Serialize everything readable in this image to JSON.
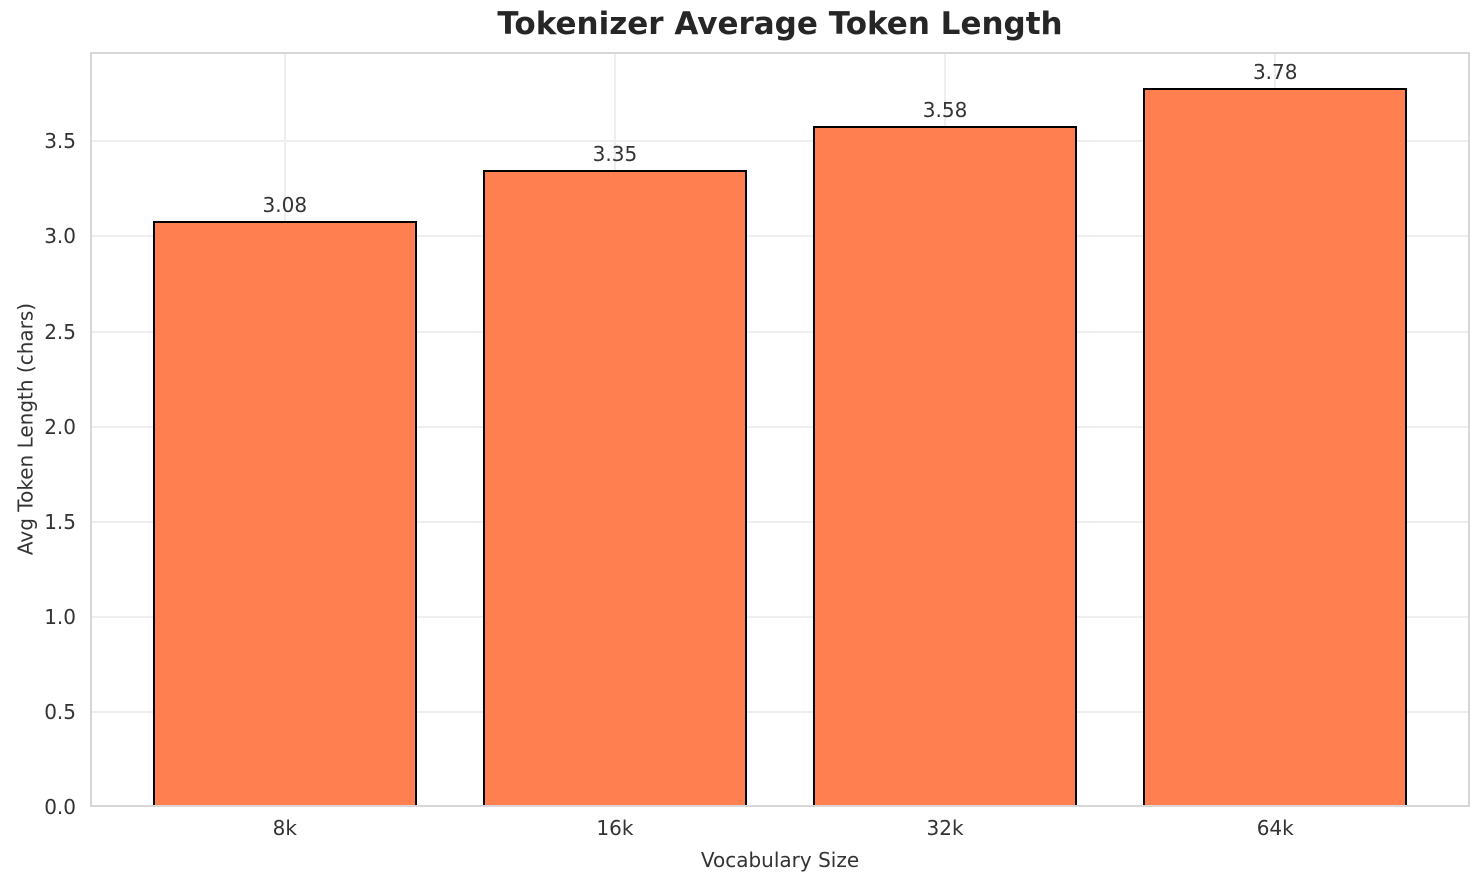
{
  "chart_data": {
    "type": "bar",
    "title": "Tokenizer Average Token Length",
    "xlabel": "Vocabulary Size",
    "ylabel": "Avg Token Length (chars)",
    "categories": [
      "8k",
      "16k",
      "32k",
      "64k"
    ],
    "values": [
      3.08,
      3.35,
      3.58,
      3.78
    ],
    "value_labels": [
      "3.08",
      "3.35",
      "3.58",
      "3.78"
    ],
    "yticks": [
      0.0,
      0.5,
      1.0,
      1.5,
      2.0,
      2.5,
      3.0,
      3.5
    ],
    "ytick_labels": [
      "0.0",
      "0.5",
      "1.0",
      "1.5",
      "2.0",
      "2.5",
      "3.0",
      "3.5"
    ],
    "ylim": [
      0,
      3.97
    ],
    "bar_width_fraction": 0.8,
    "grid": true,
    "legend_position": "none",
    "colors": {
      "bar_fill": "#FF7F50",
      "bar_edge": "#000000",
      "grid": "#EEEEEE",
      "spine": "#D7D7D7",
      "text": "#333333",
      "title_text": "#262626",
      "background": "#FFFFFF"
    }
  }
}
